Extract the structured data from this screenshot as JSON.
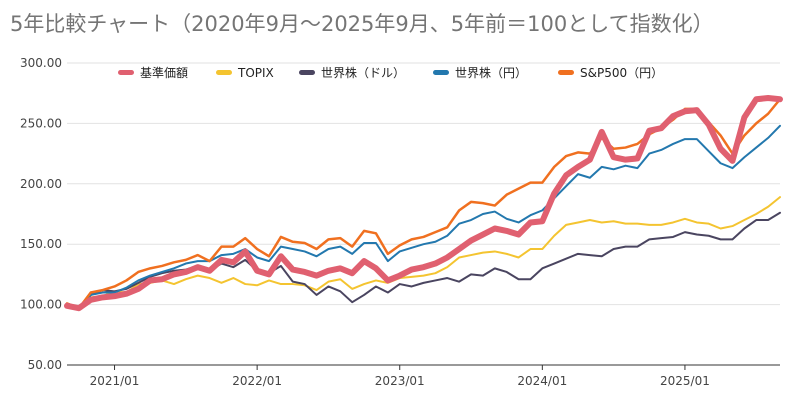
{
  "chart_data": {
    "type": "line",
    "title": "5年比較チャート（2020年9月〜2025年9月、5年前＝100として指数化）",
    "xlabel": "",
    "ylabel": "",
    "ylim": [
      50,
      300
    ],
    "yticks": [
      "50.00",
      "100.00",
      "150.00",
      "200.00",
      "250.00",
      "300.00"
    ],
    "xlim": [
      "2020-09",
      "2025-09"
    ],
    "xticks": [
      {
        "label": "2021/01",
        "x": "2021-01"
      },
      {
        "label": "2022/01",
        "x": "2022-01"
      },
      {
        "label": "2023/01",
        "x": "2023-01"
      },
      {
        "label": "2024/01",
        "x": "2024-01"
      },
      {
        "label": "2025/01",
        "x": "2025-01"
      }
    ],
    "grid": true,
    "legend_position": "top",
    "x": [
      "2020-09",
      "2020-10",
      "2020-11",
      "2020-12",
      "2021-01",
      "2021-02",
      "2021-03",
      "2021-04",
      "2021-05",
      "2021-06",
      "2021-07",
      "2021-08",
      "2021-09",
      "2021-10",
      "2021-11",
      "2021-12",
      "2022-01",
      "2022-02",
      "2022-03",
      "2022-04",
      "2022-05",
      "2022-06",
      "2022-07",
      "2022-08",
      "2022-09",
      "2022-10",
      "2022-11",
      "2022-12",
      "2023-01",
      "2023-02",
      "2023-03",
      "2023-04",
      "2023-05",
      "2023-06",
      "2023-07",
      "2023-08",
      "2023-09",
      "2023-10",
      "2023-11",
      "2023-12",
      "2024-01",
      "2024-02",
      "2024-03",
      "2024-04",
      "2024-05",
      "2024-06",
      "2024-07",
      "2024-08",
      "2024-09",
      "2024-10",
      "2024-11",
      "2024-12",
      "2025-01",
      "2025-02",
      "2025-03",
      "2025-04",
      "2025-05",
      "2025-06",
      "2025-07",
      "2025-08",
      "2025-09"
    ],
    "series": [
      {
        "name": "基準価額",
        "color": "#E06070",
        "width": 6,
        "values": [
          99,
          97,
          104,
          106,
          107,
          109,
          113,
          120,
          121,
          125,
          127,
          131,
          128,
          137,
          135,
          144,
          128,
          125,
          140,
          129,
          127,
          124,
          128,
          130,
          126,
          136,
          130,
          120,
          124,
          129,
          131,
          134,
          139,
          146,
          153,
          158,
          163,
          161,
          158,
          168,
          169,
          192,
          207,
          214,
          220,
          243,
          222,
          220,
          221,
          244,
          246,
          256,
          260,
          261,
          249,
          229,
          219,
          255,
          270,
          271,
          270
        ]
      },
      {
        "name": "TOPIX",
        "color": "#F4C430",
        "width": 2,
        "values": [
          100,
          97,
          106,
          107,
          111,
          110,
          117,
          118,
          120,
          117,
          121,
          124,
          122,
          118,
          122,
          117,
          116,
          120,
          117,
          117,
          116,
          112,
          119,
          121,
          113,
          117,
          120,
          118,
          122,
          123,
          124,
          126,
          131,
          139,
          141,
          143,
          144,
          142,
          139,
          146,
          146,
          157,
          166,
          168,
          170,
          168,
          169,
          167,
          167,
          166,
          166,
          168,
          171,
          168,
          167,
          163,
          165,
          170,
          175,
          181,
          189
        ]
      },
      {
        "name": "世界株（ドル）",
        "color": "#4A4560",
        "width": 2,
        "values": [
          99,
          96,
          108,
          112,
          111,
          113,
          118,
          123,
          126,
          128,
          129,
          132,
          128,
          134,
          131,
          137,
          128,
          126,
          132,
          119,
          117,
          108,
          115,
          111,
          102,
          108,
          115,
          110,
          117,
          115,
          118,
          120,
          122,
          119,
          125,
          124,
          130,
          127,
          121,
          121,
          130,
          134,
          138,
          142,
          141,
          140,
          146,
          148,
          148,
          154,
          155,
          156,
          160,
          158,
          157,
          154,
          154,
          163,
          170,
          170,
          176
        ]
      },
      {
        "name": "世界株（円）",
        "color": "#2378AE",
        "width": 2,
        "values": [
          100,
          98,
          108,
          110,
          110,
          114,
          120,
          124,
          127,
          130,
          134,
          136,
          136,
          141,
          142,
          146,
          139,
          136,
          148,
          146,
          144,
          140,
          146,
          148,
          142,
          151,
          151,
          136,
          144,
          147,
          150,
          152,
          157,
          167,
          170,
          175,
          177,
          171,
          168,
          174,
          178,
          188,
          198,
          208,
          205,
          214,
          212,
          215,
          213,
          225,
          228,
          233,
          237,
          237,
          227,
          217,
          213,
          222,
          230,
          238,
          248
        ]
      },
      {
        "name": "S&P500（円）",
        "color": "#F07020",
        "width": 2.5,
        "values": [
          101,
          97,
          110,
          112,
          115,
          120,
          127,
          130,
          132,
          135,
          137,
          141,
          136,
          148,
          148,
          155,
          146,
          140,
          156,
          152,
          151,
          146,
          154,
          155,
          148,
          161,
          159,
          142,
          149,
          154,
          156,
          160,
          164,
          178,
          185,
          184,
          182,
          191,
          196,
          201,
          201,
          214,
          223,
          226,
          225,
          238,
          229,
          230,
          233,
          241,
          246,
          253,
          262,
          262,
          251,
          240,
          225,
          240,
          250,
          258,
          270
        ]
      }
    ]
  }
}
